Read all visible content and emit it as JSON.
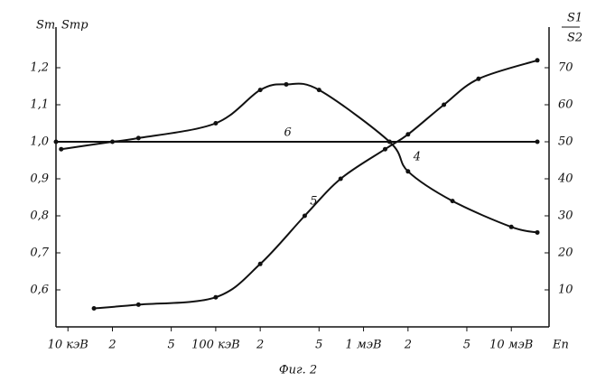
{
  "chart_data": {
    "type": "line",
    "caption": "Фиг. 2",
    "y_label": "Sт",
    "y_label_2": "Sтр",
    "y2_label_top": "S1",
    "y2_label_bottom": "S2",
    "x_label": "Eп",
    "x_log": true,
    "xlim": [
      8.3,
      18000
    ],
    "xticks": [
      {
        "value": 10,
        "label": "10 кэВ"
      },
      {
        "value": 20,
        "label": "2"
      },
      {
        "value": 50,
        "label": "5"
      },
      {
        "value": 100,
        "label": "100 кэВ"
      },
      {
        "value": 200,
        "label": "2"
      },
      {
        "value": 500,
        "label": "5"
      },
      {
        "value": 1000,
        "label": "1 мэВ"
      },
      {
        "value": 2000,
        "label": "2"
      },
      {
        "value": 5000,
        "label": "5"
      },
      {
        "value": 10000,
        "label": "10 мэВ"
      }
    ],
    "ylim": [
      0.5,
      1.3
    ],
    "yticks": [
      {
        "value": 0.6,
        "label": "0,6"
      },
      {
        "value": 0.7,
        "label": "0,7"
      },
      {
        "value": 0.8,
        "label": "0,8"
      },
      {
        "value": 0.9,
        "label": "0,9"
      },
      {
        "value": 1.0,
        "label": "1,0"
      },
      {
        "value": 1.1,
        "label": "1,1"
      },
      {
        "value": 1.2,
        "label": "1,2"
      }
    ],
    "y2lim": [
      0,
      80
    ],
    "y2ticks": [
      10,
      20,
      30,
      40,
      50,
      60,
      70
    ],
    "series": [
      {
        "name": "4",
        "color": "#111",
        "x": [
          9,
          20,
          30,
          100,
          200,
          300,
          500,
          1500,
          2000,
          4000,
          10000,
          15000
        ],
        "values": [
          0.98,
          1.0,
          1.01,
          1.05,
          1.14,
          1.155,
          1.14,
          1.0,
          0.92,
          0.84,
          0.77,
          0.755
        ]
      },
      {
        "name": "5",
        "color": "#111",
        "axis": "y2",
        "x": [
          15,
          30,
          100,
          200,
          400,
          700,
          1400,
          2000,
          3500,
          6000,
          15000
        ],
        "values": [
          5,
          6,
          8,
          17,
          30,
          40,
          48,
          52,
          60,
          67,
          72
        ]
      },
      {
        "name": "6",
        "color": "#111",
        "x": [
          8.3,
          15000
        ],
        "values": [
          1.0,
          1.0
        ]
      }
    ]
  }
}
